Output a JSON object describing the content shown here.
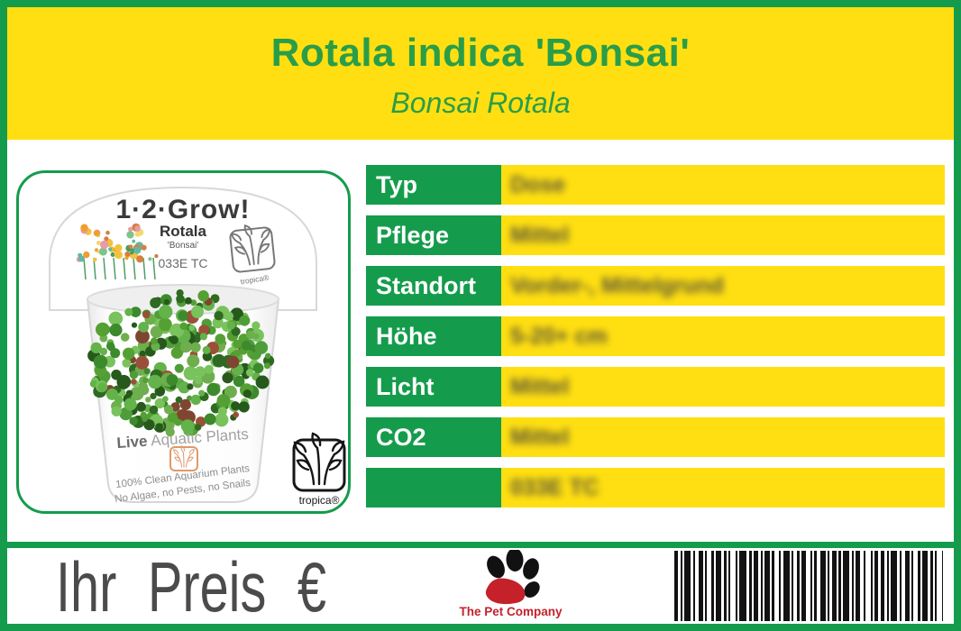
{
  "header": {
    "title": "Rotala indica 'Bonsai'",
    "subtitle": "Bonsai Rotala"
  },
  "info_table": {
    "values_blurred": true,
    "rows": [
      {
        "label": "Typ",
        "value": "Dose"
      },
      {
        "label": "Pflege",
        "value": "Mittel"
      },
      {
        "label": "Standort",
        "value": "Vorder-, Mittelgrund"
      },
      {
        "label": "Höhe",
        "value": "5-20+ cm"
      },
      {
        "label": "Licht",
        "value": "Mittel"
      },
      {
        "label": "CO2",
        "value": "Mittel"
      },
      {
        "label": "",
        "value": "033E TC"
      }
    ]
  },
  "product_photo": {
    "lid_brand": "1·2·Grow!",
    "lid_plant": "Rotala",
    "lid_variety": "'Bonsai'",
    "lid_code": "033E TC",
    "lid_logo_text": "tropica®",
    "pot_line_bold": "Live",
    "pot_line_rest": " Aquatic Plants",
    "pot_arc_line1": "100% Clean Aquarium Plants",
    "pot_arc_line2": "No Algae, no Pests, no Snails",
    "badge_text": "tropica®"
  },
  "footer": {
    "price_label": "Ihr Preis €",
    "company_name": "The Pet Company"
  },
  "colors": {
    "green": "#149c4c",
    "yellow": "#ffdf11",
    "title_green": "#2a9d49",
    "company_red": "#c5212b",
    "price_gray": "#4b4b4b"
  }
}
